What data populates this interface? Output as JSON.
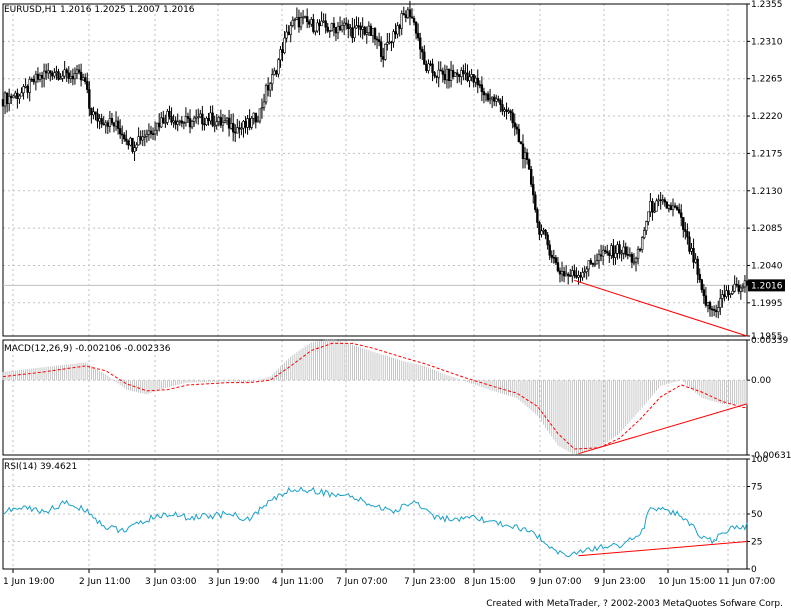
{
  "chart_data": [
    {
      "type": "candlestick",
      "title": "EURUSD,H1  1.2016 1.2025 1.2007 1.2016",
      "ylim": [
        1.1955,
        1.2355
      ],
      "y_ticks": [
        "1.2355",
        "1.2310",
        "1.2265",
        "1.2220",
        "1.2175",
        "1.2130",
        "1.2085",
        "1.2040",
        "1.1995",
        "1.1955"
      ],
      "current_price": "1.2016",
      "x_tick_labels": [
        "1 Jun 19:00",
        "2 Jun 11:00",
        "3 Jun 03:00",
        "3 Jun 19:00",
        "4 Jun 11:00",
        "7 Jun 07:00",
        "7 Jun 23:00",
        "8 Jun 15:00",
        "9 Jun 07:00",
        "9 Jun 23:00",
        "10 Jun 15:00",
        "11 Jun 07:00"
      ],
      "close_path": [
        [
          0,
          1.224
        ],
        [
          5,
          1.2245
        ],
        [
          10,
          1.2248
        ],
        [
          15,
          1.2262
        ],
        [
          20,
          1.227
        ],
        [
          25,
          1.2275
        ],
        [
          30,
          1.2268
        ],
        [
          35,
          1.227
        ],
        [
          40,
          1.226
        ],
        [
          42,
          1.223
        ],
        [
          45,
          1.2218
        ],
        [
          50,
          1.2215
        ],
        [
          55,
          1.2208
        ],
        [
          60,
          1.2195
        ],
        [
          63,
          1.2185
        ],
        [
          65,
          1.2192
        ],
        [
          70,
          1.22
        ],
        [
          75,
          1.221
        ],
        [
          80,
          1.2222
        ],
        [
          85,
          1.2215
        ],
        [
          90,
          1.2212
        ],
        [
          95,
          1.2215
        ],
        [
          100,
          1.2218
        ],
        [
          105,
          1.2212
        ],
        [
          110,
          1.221
        ],
        [
          115,
          1.2205
        ],
        [
          120,
          1.221
        ],
        [
          125,
          1.2225
        ],
        [
          128,
          1.225
        ],
        [
          132,
          1.227
        ],
        [
          135,
          1.2295
        ],
        [
          140,
          1.233
        ],
        [
          145,
          1.2335
        ],
        [
          150,
          1.233
        ],
        [
          155,
          1.2328
        ],
        [
          160,
          1.2325
        ],
        [
          165,
          1.233
        ],
        [
          170,
          1.2322
        ],
        [
          175,
          1.2325
        ],
        [
          180,
          1.2318
        ],
        [
          185,
          1.2295
        ],
        [
          190,
          1.232
        ],
        [
          195,
          1.234
        ],
        [
          198,
          1.2345
        ],
        [
          201,
          1.2325
        ],
        [
          205,
          1.228
        ],
        [
          210,
          1.2272
        ],
        [
          215,
          1.2268
        ],
        [
          220,
          1.227
        ],
        [
          225,
          1.2272
        ],
        [
          230,
          1.226
        ],
        [
          235,
          1.2245
        ],
        [
          240,
          1.2238
        ],
        [
          245,
          1.2228
        ],
        [
          250,
          1.22
        ],
        [
          255,
          1.216
        ],
        [
          258,
          1.213
        ],
        [
          260,
          1.209
        ],
        [
          263,
          1.2075
        ],
        [
          266,
          1.206
        ],
        [
          270,
          1.2035
        ],
        [
          275,
          1.2028
        ],
        [
          280,
          1.203
        ],
        [
          285,
          1.204
        ],
        [
          290,
          1.205
        ],
        [
          295,
          1.2055
        ],
        [
          300,
          1.206
        ],
        [
          305,
          1.205
        ],
        [
          308,
          1.2045
        ],
        [
          310,
          1.206
        ],
        [
          313,
          1.2095
        ],
        [
          315,
          1.211
        ],
        [
          320,
          1.2113
        ],
        [
          325,
          1.211
        ],
        [
          328,
          1.2105
        ],
        [
          331,
          1.2085
        ],
        [
          334,
          1.206
        ],
        [
          337,
          1.204
        ],
        [
          340,
          1.2005
        ],
        [
          343,
          1.199
        ],
        [
          346,
          1.1985
        ],
        [
          350,
          1.2002
        ],
        [
          355,
          1.201
        ],
        [
          360,
          1.2016
        ]
      ],
      "annotation_line": {
        "from": [
          278,
          1.2022
        ],
        "to": [
          362,
          1.1955
        ],
        "color": "#ff0000"
      }
    },
    {
      "type": "histogram",
      "title": "MACD(12,26,9)  -0.002106  -0.002336",
      "ylim": [
        -0.00631,
        0.00339
      ],
      "y_ticks": [
        "0.00339",
        "0.00",
        "-0.00631"
      ],
      "macd_path": [
        [
          0,
          0.0007
        ],
        [
          20,
          0.0011
        ],
        [
          40,
          0.0015
        ],
        [
          50,
          0.0005
        ],
        [
          60,
          -0.0008
        ],
        [
          70,
          -0.0012
        ],
        [
          80,
          -0.0006
        ],
        [
          90,
          -0.0002
        ],
        [
          110,
          -0.0001
        ],
        [
          120,
          -0.0002
        ],
        [
          130,
          0.0003
        ],
        [
          140,
          0.002
        ],
        [
          150,
          0.0032
        ],
        [
          160,
          0.0035
        ],
        [
          170,
          0.003
        ],
        [
          180,
          0.0024
        ],
        [
          195,
          0.0016
        ],
        [
          205,
          0.0012
        ],
        [
          215,
          0.0005
        ],
        [
          225,
          -0.0001
        ],
        [
          240,
          -0.001
        ],
        [
          250,
          -0.0015
        ],
        [
          260,
          -0.003
        ],
        [
          270,
          -0.0055
        ],
        [
          278,
          -0.0063
        ],
        [
          290,
          -0.0057
        ],
        [
          300,
          -0.0045
        ],
        [
          310,
          -0.0025
        ],
        [
          320,
          -0.0005
        ],
        [
          330,
          0.0
        ],
        [
          340,
          -0.0015
        ],
        [
          350,
          -0.002
        ],
        [
          360,
          -0.0021
        ]
      ],
      "signal_path": [
        [
          0,
          0.0003
        ],
        [
          20,
          0.0007
        ],
        [
          40,
          0.0012
        ],
        [
          50,
          0.0008
        ],
        [
          60,
          -0.0003
        ],
        [
          70,
          -0.0009
        ],
        [
          80,
          -0.0008
        ],
        [
          90,
          -0.0004
        ],
        [
          110,
          -0.0002
        ],
        [
          120,
          -0.0002
        ],
        [
          130,
          0.0
        ],
        [
          140,
          0.0012
        ],
        [
          150,
          0.0025
        ],
        [
          160,
          0.0031
        ],
        [
          170,
          0.0031
        ],
        [
          180,
          0.0027
        ],
        [
          195,
          0.0019
        ],
        [
          205,
          0.0014
        ],
        [
          215,
          0.0008
        ],
        [
          225,
          0.0002
        ],
        [
          240,
          -0.0006
        ],
        [
          250,
          -0.0011
        ],
        [
          260,
          -0.0022
        ],
        [
          270,
          -0.0045
        ],
        [
          278,
          -0.0058
        ],
        [
          290,
          -0.0057
        ],
        [
          300,
          -0.0049
        ],
        [
          310,
          -0.0033
        ],
        [
          320,
          -0.0014
        ],
        [
          330,
          -0.0004
        ],
        [
          340,
          -0.001
        ],
        [
          350,
          -0.0018
        ],
        [
          360,
          -0.0023
        ]
      ],
      "annotation_line": {
        "from": [
          280,
          -0.0062
        ],
        "to": [
          362,
          -0.002
        ],
        "color": "#ff0000"
      }
    },
    {
      "type": "line",
      "title": "RSI(14)  39.4621",
      "ylim": [
        0,
        100
      ],
      "y_ticks": [
        "100",
        "75",
        "50",
        "25",
        "0"
      ],
      "rsi_path": [
        [
          0,
          52
        ],
        [
          10,
          56
        ],
        [
          20,
          52
        ],
        [
          30,
          60
        ],
        [
          40,
          54
        ],
        [
          50,
          38
        ],
        [
          60,
          35
        ],
        [
          70,
          45
        ],
        [
          80,
          50
        ],
        [
          90,
          47
        ],
        [
          100,
          48
        ],
        [
          110,
          50
        ],
        [
          120,
          45
        ],
        [
          130,
          62
        ],
        [
          140,
          72
        ],
        [
          150,
          72
        ],
        [
          160,
          68
        ],
        [
          170,
          65
        ],
        [
          180,
          58
        ],
        [
          190,
          52
        ],
        [
          200,
          62
        ],
        [
          210,
          48
        ],
        [
          220,
          44
        ],
        [
          230,
          46
        ],
        [
          240,
          42
        ],
        [
          250,
          38
        ],
        [
          260,
          30
        ],
        [
          270,
          16
        ],
        [
          275,
          13
        ],
        [
          280,
          14
        ],
        [
          290,
          20
        ],
        [
          300,
          22
        ],
        [
          310,
          30
        ],
        [
          315,
          55
        ],
        [
          320,
          55
        ],
        [
          330,
          48
        ],
        [
          335,
          40
        ],
        [
          340,
          28
        ],
        [
          345,
          25
        ],
        [
          350,
          32
        ],
        [
          355,
          38
        ],
        [
          360,
          39
        ]
      ],
      "annotation_line": {
        "from": [
          280,
          12
        ],
        "to": [
          362,
          25
        ],
        "color": "#ff0000"
      }
    }
  ],
  "footer": {
    "credit": "Created with MetaTrader, ? 2002-2003 MetaQuotes Sofware Corp."
  }
}
